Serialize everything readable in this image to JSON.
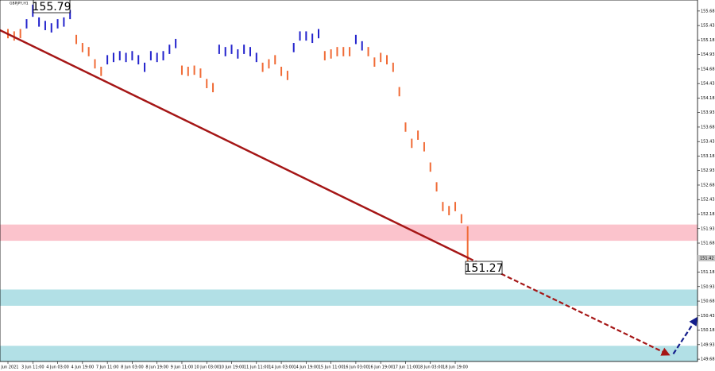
{
  "chart_data": {
    "type": "range-bars",
    "title": "GBPJPY,H1",
    "high": [
      155.37,
      155.33,
      155.37,
      155.54,
      155.79,
      155.57,
      155.51,
      155.47,
      155.54,
      155.57,
      155.7,
      155.27,
      155.13,
      155.06,
      154.85,
      154.72,
      154.92,
      154.96,
      154.99,
      154.96,
      154.99,
      154.92,
      154.79,
      154.99,
      154.96,
      154.99,
      155.1,
      155.2,
      154.74,
      154.72,
      154.74,
      154.69,
      154.51,
      154.44,
      155.1,
      155.06,
      155.1,
      155.02,
      155.1,
      155.06,
      154.96,
      154.79,
      154.85,
      154.92,
      154.72,
      154.65,
      155.13,
      155.33,
      155.33,
      155.29,
      155.37,
      154.99,
      155.02,
      155.06,
      155.06,
      155.06,
      155.27,
      155.16,
      155.06,
      154.88,
      154.96,
      154.92,
      154.79,
      154.37,
      153.76,
      153.48,
      153.62,
      153.42,
      153.07,
      152.73,
      152.39,
      152.32,
      152.39,
      152.18,
      151.97
    ],
    "low": [
      155.21,
      155.17,
      155.21,
      155.38,
      155.58,
      155.41,
      155.35,
      155.31,
      155.38,
      155.41,
      155.54,
      155.11,
      154.97,
      154.9,
      154.69,
      154.56,
      154.76,
      154.8,
      154.83,
      154.8,
      154.83,
      154.76,
      154.63,
      154.83,
      154.8,
      154.83,
      154.94,
      155.04,
      154.58,
      154.56,
      154.58,
      154.53,
      154.35,
      154.28,
      154.94,
      154.9,
      154.94,
      154.86,
      154.94,
      154.9,
      154.8,
      154.63,
      154.69,
      154.76,
      154.56,
      154.49,
      154.97,
      155.17,
      155.17,
      155.13,
      155.21,
      154.83,
      154.86,
      154.9,
      154.9,
      154.9,
      155.11,
      155.0,
      154.9,
      154.72,
      154.8,
      154.76,
      154.63,
      154.21,
      153.6,
      153.32,
      153.46,
      153.26,
      152.91,
      152.57,
      152.23,
      152.16,
      152.23,
      152.02,
      151.27
    ],
    "colors": [
      "#f06a35",
      "#f06a35",
      "#f06a35",
      "#2222cc",
      "#2222cc",
      "#2222cc",
      "#2222cc",
      "#2222cc",
      "#2222cc",
      "#2222cc",
      "#2222cc",
      "#f06a35",
      "#f06a35",
      "#f06a35",
      "#f06a35",
      "#f06a35",
      "#2222cc",
      "#2222cc",
      "#2222cc",
      "#2222cc",
      "#2222cc",
      "#2222cc",
      "#2222cc",
      "#2222cc",
      "#2222cc",
      "#2222cc",
      "#2222cc",
      "#2222cc",
      "#f06a35",
      "#f06a35",
      "#f06a35",
      "#f06a35",
      "#f06a35",
      "#f06a35",
      "#2222cc",
      "#2222cc",
      "#2222cc",
      "#2222cc",
      "#2222cc",
      "#2222cc",
      "#2222cc",
      "#f06a35",
      "#f06a35",
      "#f06a35",
      "#f06a35",
      "#f06a35",
      "#2222cc",
      "#2222cc",
      "#2222cc",
      "#2222cc",
      "#2222cc",
      "#f06a35",
      "#f06a35",
      "#f06a35",
      "#f06a35",
      "#f06a35",
      "#2222cc",
      "#2222cc",
      "#f06a35",
      "#f06a35",
      "#f06a35",
      "#f06a35",
      "#f06a35",
      "#f06a35",
      "#f06a35",
      "#f06a35",
      "#f06a35",
      "#f06a35",
      "#f06a35",
      "#f06a35",
      "#f06a35",
      "#f06a35",
      "#f06a35",
      "#f06a35",
      "#f06a35"
    ],
    "xlim": [
      -1.28,
      111.0
    ],
    "xticks": [
      {
        "value": 0,
        "label": "2 Jun 2021"
      },
      {
        "value": 4,
        "label": "3 Jun 11:00"
      },
      {
        "value": 8,
        "label": "4 Jun 03:00"
      },
      {
        "value": 12,
        "label": "4 Jun 19:00"
      },
      {
        "value": 16,
        "label": "7 Jun 11:00"
      },
      {
        "value": 20,
        "label": "8 Jun 03:00"
      },
      {
        "value": 24,
        "label": "8 Jun 19:00"
      },
      {
        "value": 28,
        "label": "9 Jun 11:00"
      },
      {
        "value": 32,
        "label": "10 Jun 03:00"
      },
      {
        "value": 36,
        "label": "10 Jun 19:00"
      },
      {
        "value": 40,
        "label": "11 Jun 11:00"
      },
      {
        "value": 44,
        "label": "14 Jun 03:00"
      },
      {
        "value": 48,
        "label": "14 Jun 19:00"
      },
      {
        "value": 52,
        "label": "15 Jun 11:00"
      },
      {
        "value": 56,
        "label": "16 Jun 03:00"
      },
      {
        "value": 60,
        "label": "16 Jun 19:00"
      },
      {
        "value": 64,
        "label": "17 Jun 11:00"
      },
      {
        "value": 68,
        "label": "18 Jun 03:00"
      },
      {
        "value": 72,
        "label": "18 Jun 19:00"
      }
    ],
    "ylim": [
      149.64,
      155.87
    ],
    "yticks": [
      155.68,
      155.43,
      155.18,
      154.93,
      154.68,
      154.43,
      154.18,
      153.93,
      153.68,
      153.43,
      153.18,
      152.93,
      152.68,
      152.43,
      152.18,
      151.93,
      151.68,
      151.43,
      151.18,
      150.93,
      150.68,
      150.43,
      150.18,
      149.93,
      149.68
    ],
    "current_price": 151.42,
    "zones": [
      {
        "from": 152.0,
        "to": 151.72,
        "color": "#fbc3cc"
      },
      {
        "from": 150.88,
        "to": 150.6,
        "color": "#b2e0e6"
      },
      {
        "from": 149.91,
        "to": 149.64,
        "color": "#b2e0e6"
      }
    ],
    "lines": [
      {
        "x": [
          -1.28,
          74.2
        ],
        "y": [
          155.35,
          151.42
        ],
        "color": "#a51616",
        "style": "solid"
      },
      {
        "x": [
          74.2,
          106.1
        ],
        "y": [
          151.42,
          149.77
        ],
        "color": "#a51616",
        "style": "dashed"
      },
      {
        "x": [
          107.1,
          110.7
        ],
        "y": [
          149.77,
          150.36
        ],
        "color": "#141e8c",
        "style": "dashed"
      }
    ],
    "annotations": [
      {
        "text": "155.79"
      },
      {
        "text": "151.27"
      }
    ]
  }
}
